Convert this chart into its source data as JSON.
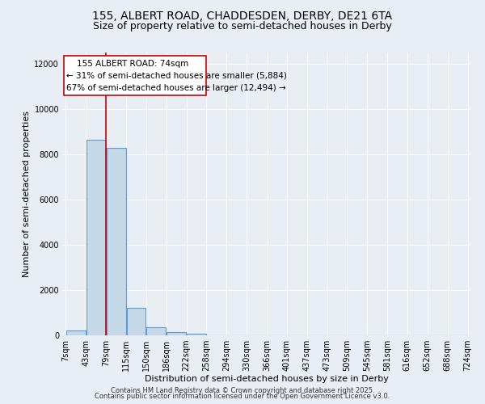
{
  "title_line1": "155, ALBERT ROAD, CHADDESDEN, DERBY, DE21 6TA",
  "title_line2": "Size of property relative to semi-detached houses in Derby",
  "xlabel": "Distribution of semi-detached houses by size in Derby",
  "ylabel": "Number of semi-detached properties",
  "property_label": "155 ALBERT ROAD: 74sqm",
  "pct_smaller": 31,
  "pct_larger": 67,
  "count_smaller": 5884,
  "count_larger": 12494,
  "red_line_x": 79,
  "bins": [
    7,
    43,
    79,
    115,
    150,
    186,
    222,
    258,
    294,
    330,
    366,
    401,
    437,
    473,
    509,
    545,
    581,
    616,
    652,
    688,
    724
  ],
  "bar_heights": [
    200,
    8650,
    8300,
    1200,
    350,
    130,
    60,
    0,
    0,
    0,
    0,
    0,
    0,
    0,
    0,
    0,
    0,
    0,
    0,
    0
  ],
  "bar_color": "#c5d8e8",
  "bar_edge_color": "#5b9bd5",
  "bar_edge_width": 0.8,
  "red_line_color": "#cc0000",
  "annotation_box_color": "#cc0000",
  "background_color": "#e8eef4",
  "grid_color": "#ffffff",
  "ylim": [
    0,
    12500
  ],
  "yticks": [
    0,
    2000,
    4000,
    6000,
    8000,
    10000,
    12000
  ],
  "footer_line1": "Contains HM Land Registry data © Crown copyright and database right 2025.",
  "footer_line2": "Contains public sector information licensed under the Open Government Licence v3.0.",
  "title_fontsize": 10,
  "subtitle_fontsize": 9,
  "axis_label_fontsize": 8,
  "tick_fontsize": 7,
  "annotation_fontsize": 7.5,
  "footer_fontsize": 6
}
